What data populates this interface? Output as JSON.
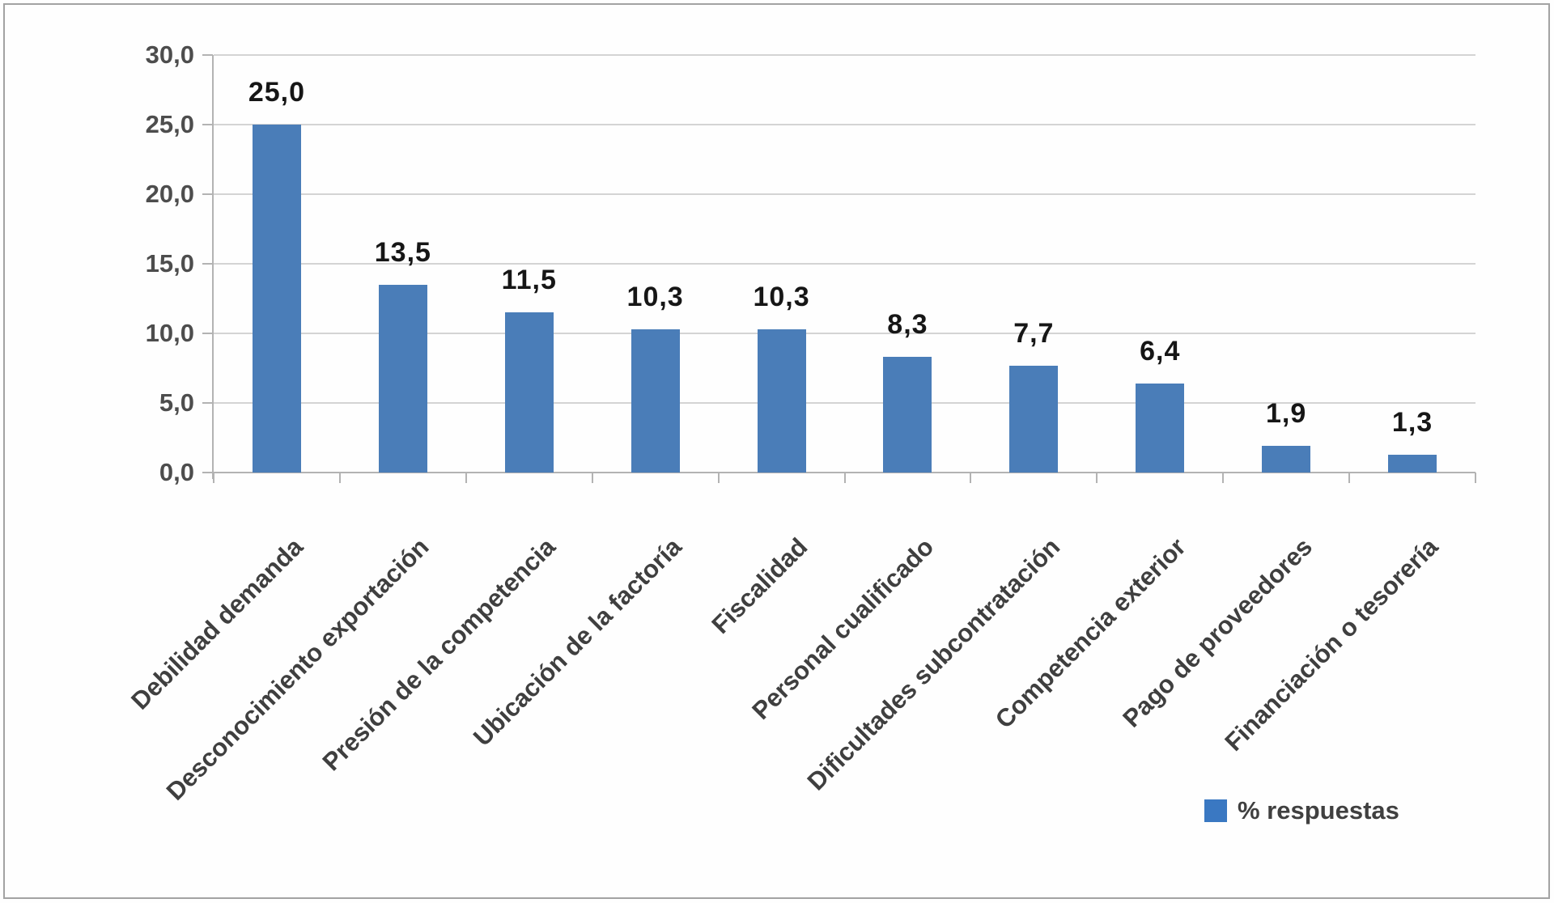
{
  "chart_data": {
    "type": "bar",
    "title": "",
    "categories": [
      "Debilidad demanda",
      "Desconocimiento exportación",
      "Presión de la competencia",
      "Ubicación de la factoría",
      "Fiscalidad",
      "Personal cualificado",
      "Dificultades subcontratación",
      "Competencia exterior",
      "Pago de proveedores",
      "Financiación o tesorería"
    ],
    "values": [
      25.0,
      13.5,
      11.5,
      10.3,
      10.3,
      8.3,
      7.7,
      6.4,
      1.9,
      1.3
    ],
    "value_labels": [
      "25,0",
      "13,5",
      "11,5",
      "10,3",
      "10,3",
      "8,3",
      "7,7",
      "6,4",
      "1,9",
      "1,3"
    ],
    "series": [
      {
        "name": "% respuestas",
        "values": [
          25.0,
          13.5,
          11.5,
          10.3,
          10.3,
          8.3,
          7.7,
          6.4,
          1.9,
          1.3
        ]
      }
    ],
    "xlabel": "",
    "ylabel": "",
    "ylim": [
      0,
      30
    ],
    "ytick_step": 5,
    "ytick_labels": [
      "0,0",
      "5,0",
      "10,0",
      "15,0",
      "20,0",
      "25,0",
      "30,0"
    ],
    "grid": true,
    "legend_position": "bottom-right",
    "bar_color": "#4a7db8"
  },
  "legend": {
    "label": "% respuestas",
    "swatch_color": "#3a78c2"
  },
  "colors": {
    "bar": "#4a7db8",
    "legend_swatch": "#3a78c2",
    "gridline": "#d4d4d4",
    "axis": "#b3b3b3",
    "value_text": "#161616",
    "label_text": "#3f3f3f",
    "frame_border": "#a3a3a3"
  }
}
